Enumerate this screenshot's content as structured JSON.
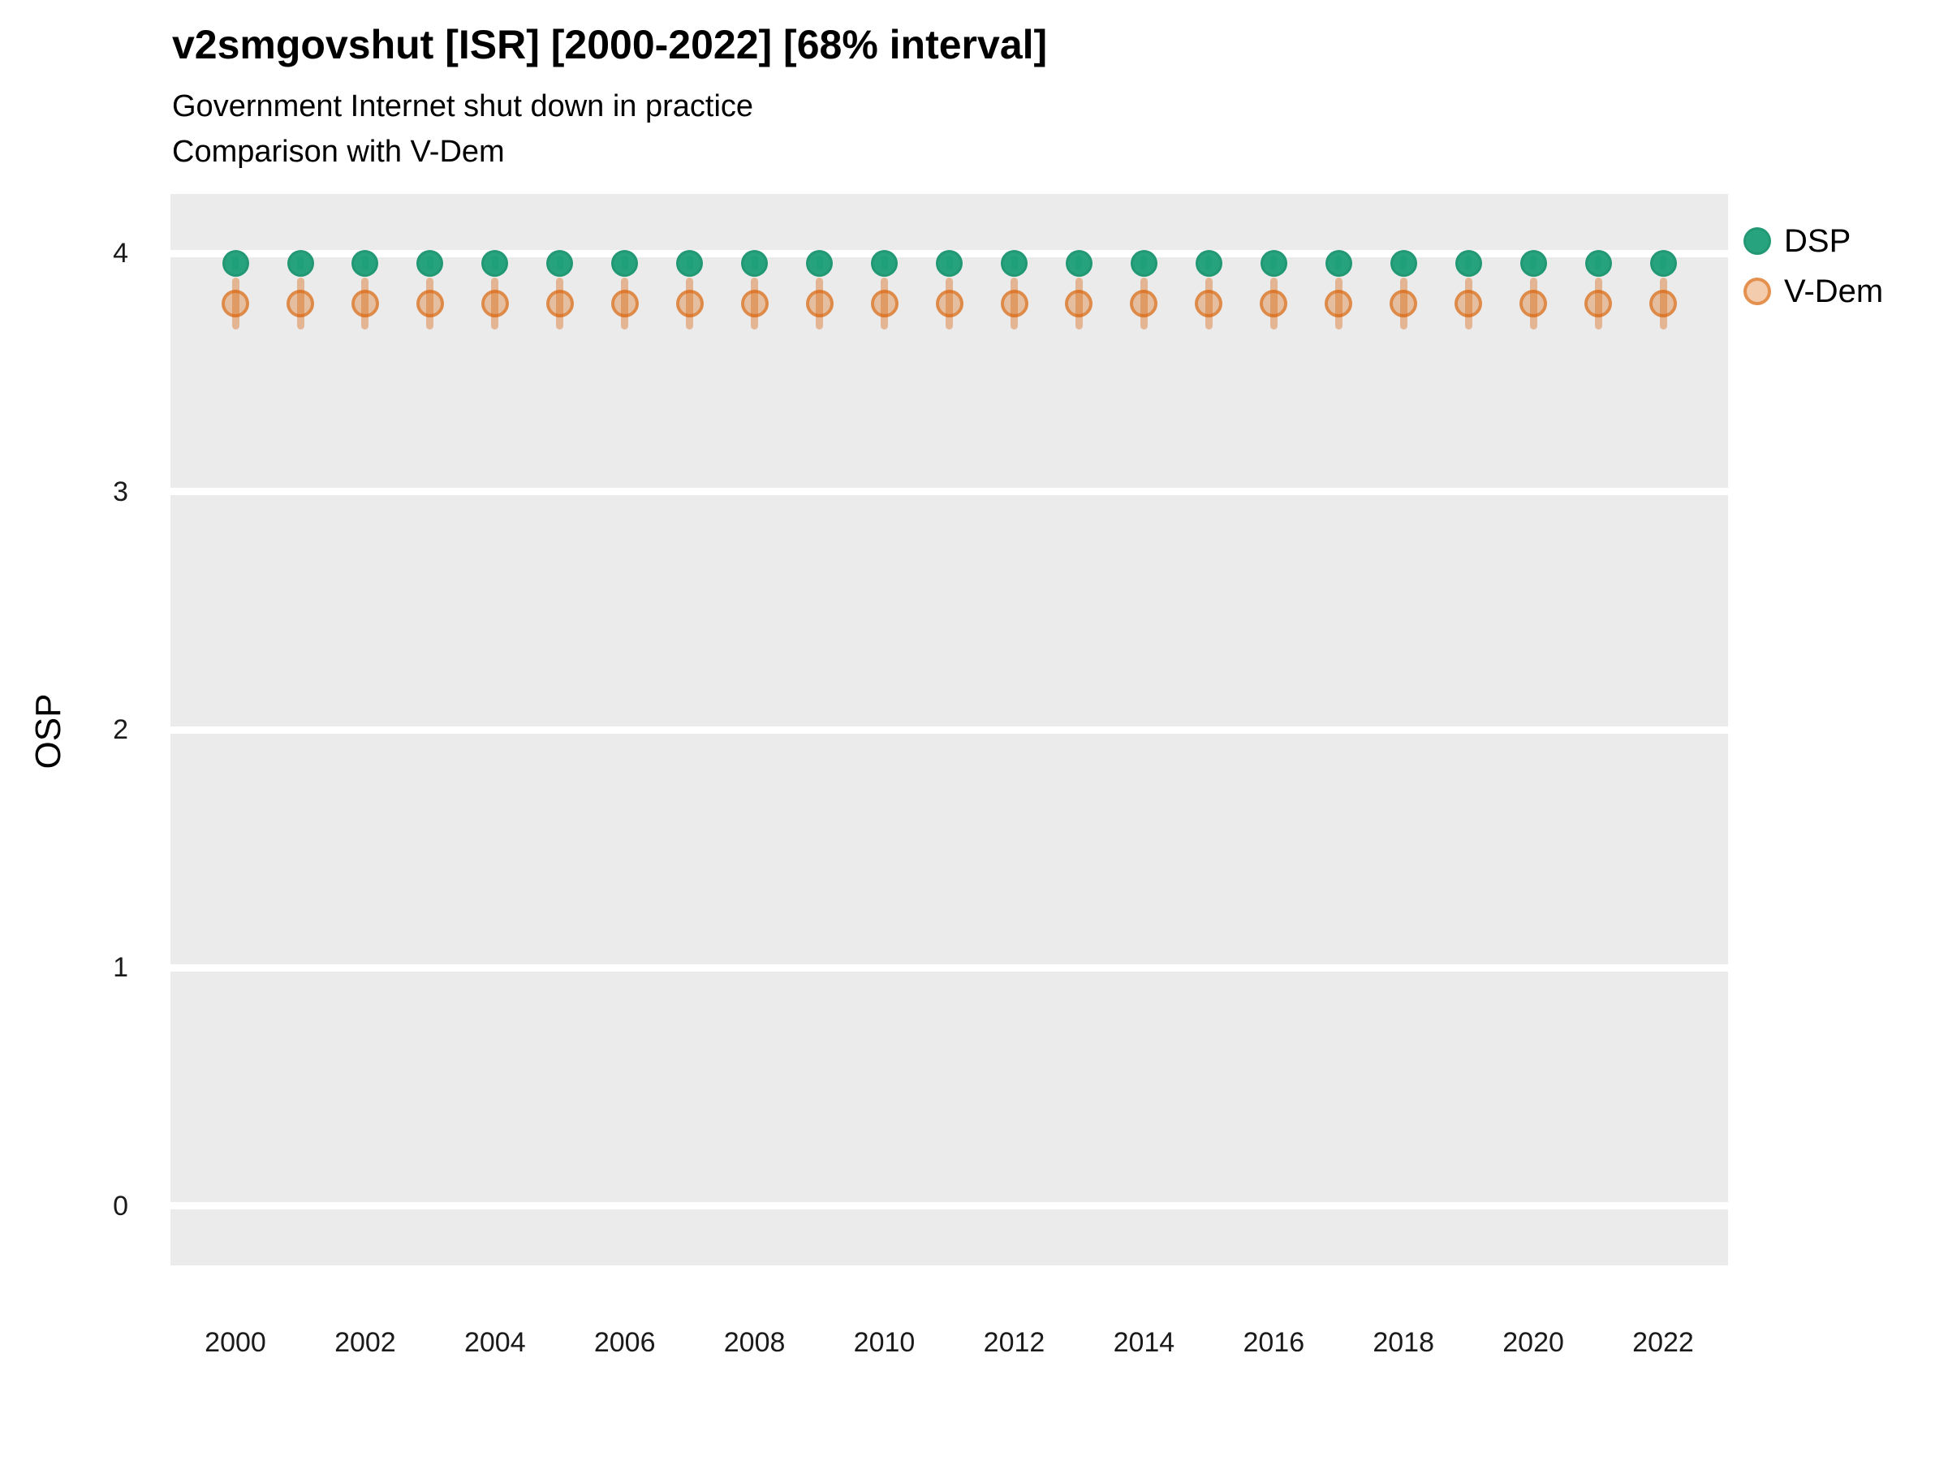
{
  "header": {
    "title": "v2smgovshut [ISR] [2000-2022] [68% interval]",
    "subtitle1": "Government Internet shut down in practice",
    "subtitle2": "Comparison with V-Dem"
  },
  "colors": {
    "dsp": "#1B9E77",
    "vdem": "#D95F02",
    "panel_background": "#EBEBEB",
    "grid": "#FFFFFF",
    "tick_text": "#1a1a1a"
  },
  "chart_data": {
    "type": "scatter",
    "title": "v2smgovshut [ISR] [2000-2022] [68% interval]",
    "subtitle": "Government Internet shut down in practice",
    "subtitle2": "Comparison with V-Dem",
    "xlabel": "",
    "ylabel": "OSP",
    "ylim": [
      -0.25,
      4.25
    ],
    "yticks": [
      4,
      3,
      2,
      1,
      0
    ],
    "xticks": [
      2000,
      2002,
      2004,
      2006,
      2008,
      2010,
      2012,
      2014,
      2016,
      2018,
      2020,
      2022
    ],
    "interval": "68%",
    "legend_position": "right-top",
    "grid": "horizontal-white-on-grey",
    "x": [
      2000,
      2001,
      2002,
      2003,
      2004,
      2005,
      2006,
      2007,
      2008,
      2009,
      2010,
      2011,
      2012,
      2013,
      2014,
      2015,
      2016,
      2017,
      2018,
      2019,
      2020,
      2021,
      2022
    ],
    "series": [
      {
        "name": "DSP",
        "color": "#1B9E77",
        "marker": "filled-circle",
        "values": [
          3.96,
          3.96,
          3.96,
          3.96,
          3.96,
          3.96,
          3.96,
          3.96,
          3.96,
          3.96,
          3.96,
          3.96,
          3.96,
          3.96,
          3.96,
          3.96,
          3.96,
          3.96,
          3.96,
          3.96,
          3.96,
          3.96,
          3.96
        ],
        "ci_low": [
          3.93,
          3.93,
          3.93,
          3.93,
          3.93,
          3.93,
          3.93,
          3.93,
          3.93,
          3.93,
          3.93,
          3.93,
          3.93,
          3.93,
          3.93,
          3.93,
          3.93,
          3.93,
          3.93,
          3.93,
          3.93,
          3.93,
          3.93
        ],
        "ci_high": [
          3.99,
          3.99,
          3.99,
          3.99,
          3.99,
          3.99,
          3.99,
          3.99,
          3.99,
          3.99,
          3.99,
          3.99,
          3.99,
          3.99,
          3.99,
          3.99,
          3.99,
          3.99,
          3.99,
          3.99,
          3.99,
          3.99,
          3.99
        ]
      },
      {
        "name": "V-Dem",
        "color": "#D95F02",
        "marker": "open-circle",
        "values": [
          3.79,
          3.79,
          3.79,
          3.79,
          3.79,
          3.79,
          3.79,
          3.79,
          3.79,
          3.79,
          3.79,
          3.79,
          3.79,
          3.79,
          3.79,
          3.79,
          3.79,
          3.79,
          3.79,
          3.79,
          3.79,
          3.79,
          3.79
        ],
        "ci_low": [
          3.68,
          3.68,
          3.68,
          3.68,
          3.68,
          3.68,
          3.68,
          3.68,
          3.68,
          3.68,
          3.68,
          3.68,
          3.68,
          3.68,
          3.68,
          3.68,
          3.68,
          3.68,
          3.68,
          3.68,
          3.68,
          3.68,
          3.68
        ],
        "ci_high": [
          3.9,
          3.9,
          3.9,
          3.9,
          3.9,
          3.9,
          3.9,
          3.9,
          3.9,
          3.9,
          3.9,
          3.9,
          3.9,
          3.9,
          3.9,
          3.9,
          3.9,
          3.9,
          3.9,
          3.9,
          3.9,
          3.9,
          3.9
        ]
      }
    ]
  }
}
